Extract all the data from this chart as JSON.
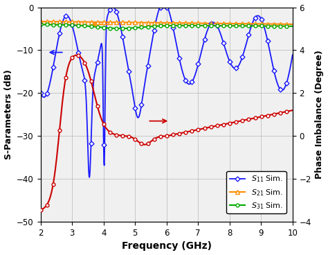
{
  "xlabel": "Frequency (GHz)",
  "ylabel_left": "S-Parameters (dB)",
  "ylabel_right": "Phase Imbalance (Degree)",
  "xlim": [
    2,
    10
  ],
  "ylim_left": [
    -50,
    0
  ],
  "ylim_right": [
    -4,
    6
  ],
  "yticks_left": [
    -50,
    -40,
    -30,
    -20,
    -10,
    0
  ],
  "yticks_right": [
    -4,
    -2,
    0,
    2,
    4,
    6
  ],
  "xticks": [
    2,
    3,
    4,
    5,
    6,
    7,
    8,
    9,
    10
  ],
  "legend_labels": [
    "$S_{11}$ Sim.",
    "$S_{21}$ Sim.",
    "$S_{31}$ Sim."
  ],
  "colors": {
    "S11": "#1a1aff",
    "S21": "#ff8c00",
    "S31": "#00aa00",
    "phase": "#cc0000"
  },
  "background": "#f0f0f0"
}
